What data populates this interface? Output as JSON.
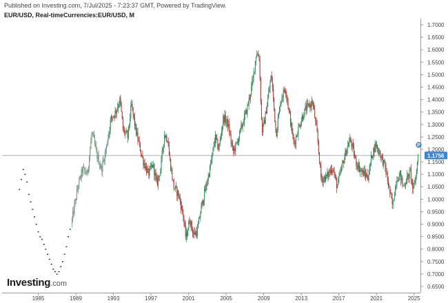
{
  "header": {
    "published": "Published on Investing.com, 7/Jul/2025 - 7:23:37 GMT, Powered by TradingView.",
    "symbol": "EUR/USD, Real-timeCurrencies:EUR/USD, M"
  },
  "brand": {
    "name": "Investing",
    "suffix": ".com"
  },
  "colors": {
    "up": "#3d8b61",
    "down": "#a6453b",
    "early": "#7a9a86",
    "price_tag": "#3f83d6",
    "price_line": "#9fb4cc",
    "axis": "#999999"
  },
  "chart_data": {
    "type": "candlestick",
    "timeframe": "monthly",
    "xlim": [
      1983.0,
      2026.3
    ],
    "ylim": [
      0.625,
      1.725
    ],
    "x_ticks": [
      "1985",
      "1989",
      "1993",
      "1997",
      "2001",
      "2005",
      "2009",
      "2013",
      "2017",
      "2021",
      "2025"
    ],
    "y_ticks": [
      "0.6500",
      "0.7000",
      "0.7500",
      "0.8000",
      "0.8500",
      "0.9000",
      "0.9500",
      "1.0000",
      "1.0500",
      "1.1000",
      "1.1500",
      "1.2000",
      "1.2500",
      "1.3000",
      "1.3500",
      "1.4000",
      "1.4500",
      "1.5000",
      "1.5500",
      "1.6000",
      "1.6500",
      "1.7000"
    ],
    "current_price": "1.1756",
    "price_marker_label": "P",
    "early_dots": [
      [
        1983.0,
        1.04
      ],
      [
        1983.2,
        1.08
      ],
      [
        1983.4,
        1.12
      ],
      [
        1983.6,
        1.1
      ],
      [
        1983.8,
        1.07
      ],
      [
        1984.0,
        1.02
      ],
      [
        1984.2,
        0.99
      ],
      [
        1984.4,
        0.96
      ],
      [
        1984.6,
        0.93
      ],
      [
        1984.8,
        0.9
      ],
      [
        1985.0,
        0.87
      ],
      [
        1985.2,
        0.85
      ],
      [
        1985.4,
        0.84
      ],
      [
        1985.6,
        0.82
      ],
      [
        1985.8,
        0.8
      ],
      [
        1986.0,
        0.78
      ],
      [
        1986.2,
        0.76
      ],
      [
        1986.4,
        0.74
      ],
      [
        1986.6,
        0.72
      ],
      [
        1986.8,
        0.71
      ],
      [
        1987.0,
        0.7
      ],
      [
        1987.2,
        0.71
      ],
      [
        1987.4,
        0.73
      ],
      [
        1987.6,
        0.75
      ],
      [
        1987.8,
        0.78
      ],
      [
        1988.0,
        0.81
      ],
      [
        1988.2,
        0.85
      ],
      [
        1988.4,
        0.88
      ]
    ],
    "path": [
      [
        1988.6,
        0.9
      ],
      [
        1989.3,
        1.05
      ],
      [
        1989.8,
        1.12
      ],
      [
        1990.3,
        1.1
      ],
      [
        1990.8,
        1.27
      ],
      [
        1991.3,
        1.18
      ],
      [
        1991.8,
        1.12
      ],
      [
        1992.3,
        1.2
      ],
      [
        1992.8,
        1.32
      ],
      [
        1993.3,
        1.35
      ],
      [
        1993.8,
        1.4
      ],
      [
        1994.1,
        1.28
      ],
      [
        1994.6,
        1.25
      ],
      [
        1995.0,
        1.38
      ],
      [
        1995.5,
        1.27
      ],
      [
        1996.2,
        1.16
      ],
      [
        1996.8,
        1.1
      ],
      [
        1997.3,
        1.14
      ],
      [
        1997.7,
        1.06
      ],
      [
        1998.1,
        1.12
      ],
      [
        1998.5,
        1.26
      ],
      [
        1998.9,
        1.24
      ],
      [
        1999.0,
        1.18
      ],
      [
        1999.5,
        1.05
      ],
      [
        2000.0,
        1.02
      ],
      [
        2000.5,
        0.94
      ],
      [
        2000.8,
        0.84
      ],
      [
        2001.2,
        0.92
      ],
      [
        2001.6,
        0.86
      ],
      [
        2002.0,
        0.87
      ],
      [
        2002.5,
        0.98
      ],
      [
        2003.0,
        1.06
      ],
      [
        2003.5,
        1.15
      ],
      [
        2003.9,
        1.25
      ],
      [
        2004.3,
        1.2
      ],
      [
        2004.8,
        1.33
      ],
      [
        2005.3,
        1.3
      ],
      [
        2005.8,
        1.19
      ],
      [
        2006.2,
        1.22
      ],
      [
        2006.8,
        1.3
      ],
      [
        2007.3,
        1.36
      ],
      [
        2007.9,
        1.47
      ],
      [
        2008.3,
        1.59
      ],
      [
        2008.6,
        1.57
      ],
      [
        2008.9,
        1.27
      ],
      [
        2009.2,
        1.32
      ],
      [
        2009.9,
        1.5
      ],
      [
        2010.4,
        1.26
      ],
      [
        2010.9,
        1.4
      ],
      [
        2011.4,
        1.45
      ],
      [
        2011.9,
        1.32
      ],
      [
        2012.3,
        1.22
      ],
      [
        2012.9,
        1.3
      ],
      [
        2013.5,
        1.36
      ],
      [
        2014.3,
        1.39
      ],
      [
        2014.8,
        1.25
      ],
      [
        2015.2,
        1.08
      ],
      [
        2015.8,
        1.09
      ],
      [
        2016.4,
        1.13
      ],
      [
        2016.9,
        1.05
      ],
      [
        2017.4,
        1.13
      ],
      [
        2017.9,
        1.2
      ],
      [
        2018.3,
        1.24
      ],
      [
        2018.9,
        1.15
      ],
      [
        2019.5,
        1.11
      ],
      [
        2020.2,
        1.09
      ],
      [
        2020.6,
        1.18
      ],
      [
        2021.0,
        1.22
      ],
      [
        2021.5,
        1.18
      ],
      [
        2022.0,
        1.13
      ],
      [
        2022.4,
        1.05
      ],
      [
        2022.8,
        0.97
      ],
      [
        2023.2,
        1.08
      ],
      [
        2023.6,
        1.1
      ],
      [
        2023.9,
        1.05
      ],
      [
        2024.3,
        1.08
      ],
      [
        2024.7,
        1.11
      ],
      [
        2025.0,
        1.03
      ],
      [
        2025.3,
        1.1
      ],
      [
        2025.5,
        1.1756
      ]
    ]
  }
}
